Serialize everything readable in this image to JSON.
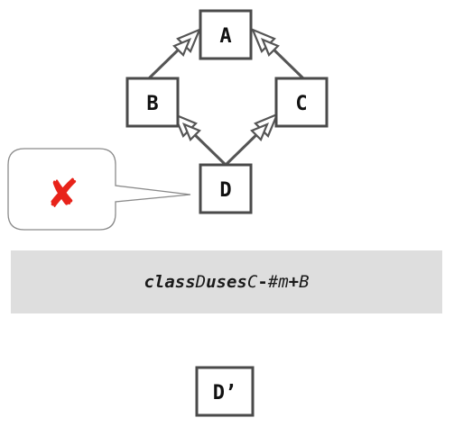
{
  "nodes": {
    "a": "A",
    "b": "B",
    "c": "C",
    "d": "D",
    "d_prime": "D’"
  },
  "callout": {
    "symbol": "✘",
    "symbol_color": "#e8231a"
  },
  "code": {
    "keyword_class": "class",
    "name_d": "D",
    "keyword_uses": "uses",
    "name_c": "C",
    "op_minus": "-",
    "method": "#m",
    "op_plus": "+",
    "name_b": "B"
  }
}
